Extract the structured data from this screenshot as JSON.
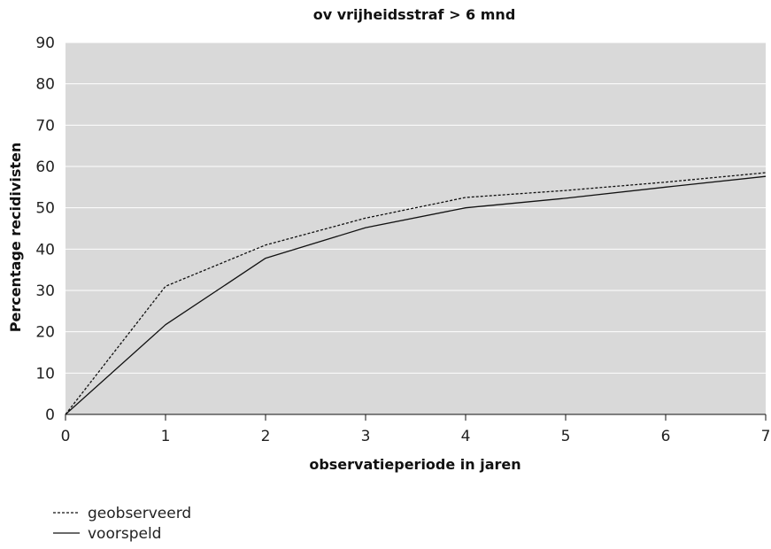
{
  "chart_data": {
    "type": "line",
    "title": "ov vrijheidsstraf > 6 mnd",
    "xlabel": "observatieperiode in jaren",
    "ylabel": "Percentage recidivisten",
    "xlim": [
      0,
      7
    ],
    "ylim": [
      0,
      90
    ],
    "x_ticks": [
      "0",
      "1",
      "2",
      "3",
      "4",
      "5",
      "6",
      "7"
    ],
    "y_ticks": [
      "0",
      "10",
      "20",
      "30",
      "40",
      "50",
      "60",
      "70",
      "80",
      "90"
    ],
    "grid": true,
    "legend_position": "bottom-left",
    "colors": {
      "plot_bg": "#d9d9d9",
      "grid": "#ffffff",
      "line": "#111111"
    },
    "series": [
      {
        "name": "geobserveerd",
        "style": "dashed",
        "x": [
          0,
          1,
          2,
          3,
          4,
          5,
          6,
          7
        ],
        "y": [
          0,
          31,
          41,
          47.5,
          52.5,
          54.2,
          56.2,
          58.5
        ]
      },
      {
        "name": "voorspeld",
        "style": "solid",
        "x": [
          0,
          1,
          2,
          3,
          4,
          5,
          6,
          7
        ],
        "y": [
          0,
          21.7,
          37.8,
          45.2,
          50,
          52.3,
          55,
          57.6
        ]
      }
    ]
  }
}
